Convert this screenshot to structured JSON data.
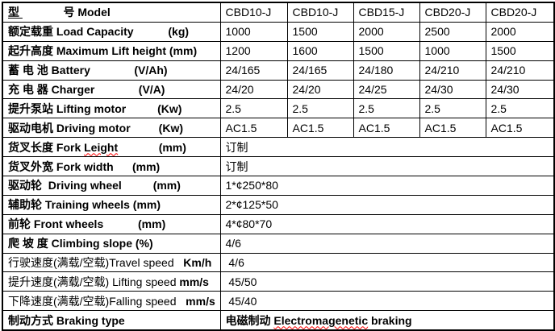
{
  "colors": {
    "highlight_red": "#ff0000",
    "border": "#000000",
    "background": "#ffffff",
    "text": "#000000"
  },
  "table": {
    "description": "forklift-model-specification-table",
    "column_models": [
      "CBD10-J",
      "CBD10-J",
      "CBD15-J",
      "CBD20-J",
      "CBD20-J"
    ],
    "rows": [
      {
        "label_parts": [
          {
            "text": "型 ",
            "bold": true,
            "underline": true
          },
          {
            "text": "             号 Model",
            "bold": true
          }
        ],
        "values": [
          "CBD10-J",
          "CBD10-J",
          "CBD15-J",
          "CBD20-J",
          "CBD20-J"
        ],
        "red": false
      },
      {
        "label_parts": [
          {
            "text": "额定载重 Load Capacity           (kg)",
            "bold": true
          }
        ],
        "values": [
          "1000",
          "1500",
          "2000",
          "2500",
          "2000"
        ],
        "red": false
      },
      {
        "label_parts": [
          {
            "text": "起升高度 Maximum Lift height (mm)",
            "bold": true
          }
        ],
        "values": [
          "1200",
          "1600",
          "1500",
          "1000",
          "1500"
        ],
        "red": false
      },
      {
        "label_parts": [
          {
            "text": "蓄 电 池 Battery              (V/Ah)",
            "bold": true
          }
        ],
        "values": [
          "24/165",
          "24/165",
          "24/180",
          "24/210",
          "24/210"
        ],
        "red": false
      },
      {
        "label_parts": [
          {
            "text": "充 电 器 Charger              (V/A)",
            "bold": true
          }
        ],
        "values": [
          "24/20",
          "24/20",
          "24/25",
          "24/30",
          "24/30"
        ],
        "red": false
      },
      {
        "label_parts": [
          {
            "text": "提升泵站 Lifting motor          (Kw)",
            "bold": true
          }
        ],
        "values": [
          "2.5",
          "2.5",
          "2.5",
          "2.5",
          "2.5"
        ],
        "red": true
      },
      {
        "label_parts": [
          {
            "text": "驱动电机 Driving motor         (Kw)",
            "bold": true
          }
        ],
        "values": [
          "AC1.5",
          "AC1.5",
          "AC1.5",
          "AC1.5",
          "AC1.5"
        ],
        "red": false
      },
      {
        "label_parts": [
          {
            "text": "货叉长度 Fork ",
            "bold": true
          },
          {
            "text": "Leight",
            "bold": true,
            "wavy": true
          },
          {
            "text": "             (mm)",
            "bold": true
          }
        ],
        "merged_parts": [
          {
            "text": "订制",
            "bold": false
          }
        ]
      },
      {
        "label_parts": [
          {
            "text": "货叉外宽 Fork width      (mm)",
            "bold": true
          }
        ],
        "merged_parts": [
          {
            "text": "订制",
            "bold": false
          }
        ]
      },
      {
        "label_parts": [
          {
            "text": "驱动轮  Driving wheel          (mm)",
            "bold": true
          }
        ],
        "merged_parts": [
          {
            "text": "1*¢250*80",
            "bold": false
          }
        ]
      },
      {
        "label_parts": [
          {
            "text": "辅助轮 Training wheels (mm)",
            "bold": true
          }
        ],
        "merged_parts": [
          {
            "text": "2*¢125*50",
            "bold": false
          }
        ]
      },
      {
        "label_parts": [
          {
            "text": "前轮 Front wheels           (mm)",
            "bold": true
          }
        ],
        "merged_parts": [
          {
            "text": "4*¢80*70",
            "bold": false
          }
        ]
      },
      {
        "label_parts": [
          {
            "text": "爬 坡 度 Climbing slope (%)",
            "bold": true
          }
        ],
        "merged_parts": [
          {
            "text": "4/6",
            "bold": false
          }
        ]
      },
      {
        "label_parts": [
          {
            "text": "行驶速度(满载/空载)Travel speed   ",
            "bold": false
          },
          {
            "text": "Km/h",
            "bold": true
          }
        ],
        "merged_parts": [
          {
            "text": " 4/6",
            "bold": false
          }
        ]
      },
      {
        "label_parts": [
          {
            "text": "提升速度(满载/空载) Lifting speed ",
            "bold": false
          },
          {
            "text": "mm/s",
            "bold": true
          }
        ],
        "merged_parts": [
          {
            "text": " 45/50",
            "bold": false
          }
        ]
      },
      {
        "label_parts": [
          {
            "text": "下降速度(满载/空载)Falling speed   ",
            "bold": false
          },
          {
            "text": "mm/s",
            "bold": true
          }
        ],
        "merged_parts": [
          {
            "text": " 45/40",
            "bold": false
          }
        ]
      },
      {
        "label_parts": [
          {
            "text": "制动方式 Braking type",
            "bold": true
          }
        ],
        "merged_parts": [
          {
            "text": "电磁制动 ",
            "bold": true
          },
          {
            "text": "Electromagenetic",
            "bold": true,
            "wavy": true
          },
          {
            "text": " braking",
            "bold": true
          }
        ]
      }
    ]
  }
}
